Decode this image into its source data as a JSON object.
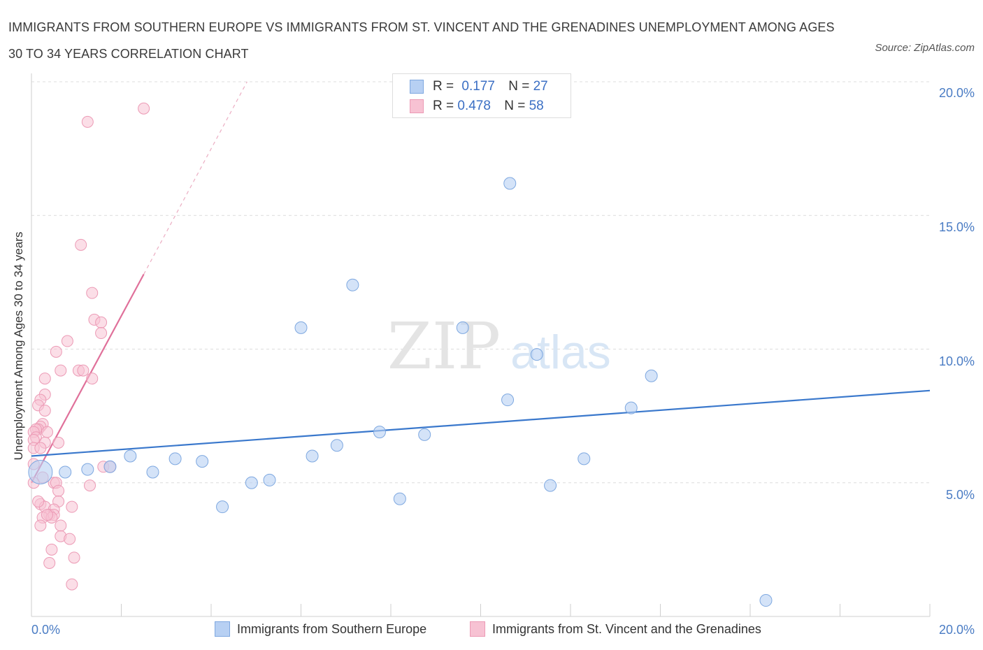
{
  "title": "IMMIGRANTS FROM SOUTHERN EUROPE VS IMMIGRANTS FROM ST. VINCENT AND THE GRENADINES UNEMPLOYMENT AMONG AGES 30 TO 34 YEARS CORRELATION CHART",
  "source": "Source: ZipAtlas.com",
  "watermark": {
    "zip": "ZIP",
    "atlas": "atlas"
  },
  "stats": {
    "r_label": "R =",
    "n_label": "N =",
    "rows": [
      {
        "r": "0.177",
        "n": "27"
      },
      {
        "r": "0.478",
        "n": "58"
      }
    ]
  },
  "colors": {
    "blue_fill": "#b7d0f3",
    "blue_stroke": "#7ea8e0",
    "blue_line": "#3a78cc",
    "pink_fill": "#f7c2d3",
    "pink_stroke": "#ec9ab5",
    "pink_line": "#e0709a",
    "tick_text": "#4a7cc4"
  },
  "chart_data": {
    "type": "scatter",
    "title": "Immigrants from Southern Europe vs Immigrants from St. Vincent and the Grenadines Unemployment Among Ages 30 to 34 years Correlation Chart",
    "xlabel": "",
    "ylabel": "Unemployment Among Ages 30 to 34 years",
    "xlim": [
      0,
      20
    ],
    "ylim": [
      0,
      20
    ],
    "x_tick_labels": [
      "0.0%",
      "20.0%"
    ],
    "y_ticks": [
      5,
      10,
      15,
      20
    ],
    "y_tick_labels": [
      "5.0%",
      "10.0%",
      "15.0%",
      "20.0%"
    ],
    "grid": true,
    "series": [
      {
        "name": "Immigrants from Southern Europe",
        "points": [
          [
            0.2,
            5.4
          ],
          [
            0.75,
            5.4
          ],
          [
            1.25,
            5.5
          ],
          [
            1.75,
            5.6
          ],
          [
            2.2,
            6.0
          ],
          [
            2.7,
            5.4
          ],
          [
            3.2,
            5.9
          ],
          [
            3.8,
            5.8
          ],
          [
            4.25,
            4.1
          ],
          [
            4.9,
            5.0
          ],
          [
            5.3,
            5.1
          ],
          [
            6.0,
            10.8
          ],
          [
            6.25,
            6.0
          ],
          [
            6.8,
            6.4
          ],
          [
            7.15,
            12.4
          ],
          [
            7.75,
            6.9
          ],
          [
            8.2,
            4.4
          ],
          [
            8.75,
            6.8
          ],
          [
            9.6,
            10.8
          ],
          [
            10.6,
            8.1
          ],
          [
            10.65,
            16.2
          ],
          [
            11.25,
            9.8
          ],
          [
            11.55,
            4.9
          ],
          [
            12.3,
            5.9
          ],
          [
            13.35,
            7.8
          ],
          [
            13.8,
            9.0
          ],
          [
            16.35,
            0.6
          ]
        ],
        "trend": {
          "x": [
            0,
            20
          ],
          "y": [
            6.0,
            8.45
          ]
        }
      },
      {
        "name": "Immigrants from St. Vincent and the Grenadines",
        "points": [
          [
            2.5,
            19.0
          ],
          [
            1.25,
            18.5
          ],
          [
            1.1,
            13.9
          ],
          [
            1.35,
            12.1
          ],
          [
            1.4,
            11.1
          ],
          [
            1.55,
            11.0
          ],
          [
            1.55,
            10.6
          ],
          [
            0.8,
            10.3
          ],
          [
            0.55,
            9.9
          ],
          [
            0.65,
            9.2
          ],
          [
            1.05,
            9.2
          ],
          [
            1.15,
            9.2
          ],
          [
            1.35,
            8.9
          ],
          [
            0.3,
            8.9
          ],
          [
            0.3,
            8.3
          ],
          [
            0.2,
            8.1
          ],
          [
            0.15,
            7.9
          ],
          [
            0.3,
            7.7
          ],
          [
            0.25,
            7.2
          ],
          [
            0.2,
            7.1
          ],
          [
            0.15,
            7.0
          ],
          [
            0.1,
            7.0
          ],
          [
            0.05,
            6.9
          ],
          [
            0.35,
            6.9
          ],
          [
            0.1,
            6.7
          ],
          [
            0.05,
            6.6
          ],
          [
            0.3,
            6.5
          ],
          [
            0.6,
            6.5
          ],
          [
            0.05,
            6.3
          ],
          [
            0.2,
            6.3
          ],
          [
            0.05,
            5.7
          ],
          [
            1.6,
            5.6
          ],
          [
            1.75,
            5.6
          ],
          [
            0.5,
            5.0
          ],
          [
            0.55,
            5.0
          ],
          [
            0.25,
            5.2
          ],
          [
            0.05,
            5.0
          ],
          [
            1.3,
            4.9
          ],
          [
            0.6,
            4.7
          ],
          [
            0.6,
            4.3
          ],
          [
            0.2,
            4.2
          ],
          [
            0.3,
            4.1
          ],
          [
            0.5,
            4.0
          ],
          [
            0.9,
            4.1
          ],
          [
            0.4,
            3.8
          ],
          [
            0.5,
            3.8
          ],
          [
            0.25,
            3.7
          ],
          [
            0.45,
            3.7
          ],
          [
            0.35,
            3.8
          ],
          [
            0.2,
            3.4
          ],
          [
            0.65,
            3.4
          ],
          [
            0.65,
            3.0
          ],
          [
            0.85,
            2.9
          ],
          [
            0.45,
            2.5
          ],
          [
            0.95,
            2.2
          ],
          [
            0.4,
            2.0
          ],
          [
            0.9,
            1.2
          ],
          [
            0.15,
            4.3
          ]
        ],
        "trend": {
          "x": [
            0,
            2.5
          ],
          "y": [
            5.0,
            12.8
          ]
        },
        "trend_extension": {
          "x": [
            2.5,
            4.8
          ],
          "y": [
            12.8,
            20.0
          ]
        }
      }
    ]
  },
  "legend": {
    "items": [
      {
        "label": "Immigrants from Southern Europe"
      },
      {
        "label": "Immigrants from St. Vincent and the Grenadines"
      }
    ]
  }
}
